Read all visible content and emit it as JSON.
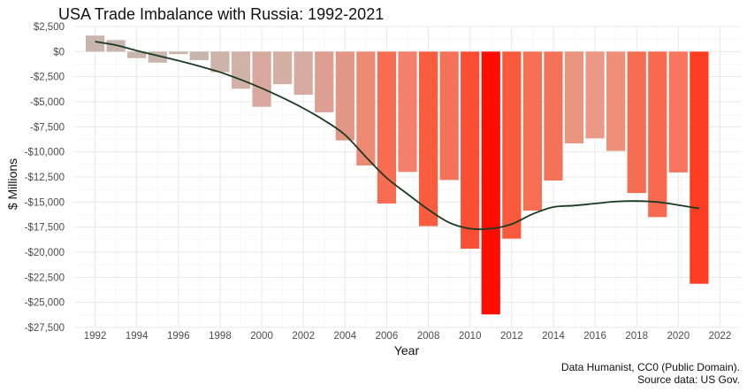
{
  "chart_data": {
    "type": "bar",
    "title": "USA Trade Imbalance with Russia: 1992-2021",
    "xlabel": "Year",
    "ylabel": "$ Millions",
    "xlim": [
      1991,
      2023
    ],
    "ylim": [
      -27500,
      2500
    ],
    "x_ticks": [
      1992,
      1994,
      1996,
      1998,
      2000,
      2002,
      2004,
      2006,
      2008,
      2010,
      2012,
      2014,
      2016,
      2018,
      2020,
      2022
    ],
    "x_tick_labels": [
      "1992",
      "1994",
      "1996",
      "1998",
      "2000",
      "2002",
      "2004",
      "2006",
      "2008",
      "2010",
      "2012",
      "2014",
      "2016",
      "2018",
      "2020",
      "2022"
    ],
    "y_ticks": [
      2500,
      0,
      -2500,
      -5000,
      -7500,
      -10000,
      -12500,
      -15000,
      -17500,
      -20000,
      -22500,
      -25000,
      -27500
    ],
    "y_tick_labels": [
      "$2,500",
      "$0",
      "-$2,500",
      "-$5,000",
      "-$7,500",
      "-$10,000",
      "-$12,500",
      "-$15,000",
      "-$17,500",
      "-$20,000",
      "-$22,500",
      "-$25,000",
      "-$27,500"
    ],
    "grid": true,
    "legend": "none",
    "categories": [
      1992,
      1993,
      1994,
      1995,
      1996,
      1997,
      1998,
      1999,
      2000,
      2001,
      2002,
      2003,
      2004,
      2005,
      2006,
      2007,
      2008,
      2009,
      2010,
      2011,
      2012,
      2013,
      2014,
      2015,
      2016,
      2017,
      2018,
      2019,
      2020,
      2021
    ],
    "values": [
      1600,
      1150,
      -650,
      -1100,
      -250,
      -850,
      -2050,
      -3700,
      -5500,
      -3250,
      -4300,
      -6050,
      -8850,
      -11350,
      -15150,
      -12000,
      -17400,
      -12800,
      -19650,
      -26200,
      -18650,
      -15850,
      -12850,
      -9150,
      -8650,
      -9900,
      -14100,
      -16500,
      -12050,
      -23150
    ],
    "colors": [
      "#c8b6ae",
      "#c8b6ae",
      "#c8b6ae",
      "#c8b6ae",
      "#c8b6ae",
      "#c8b6ae",
      "#cdb3a9",
      "#d2b1a7",
      "#d9a89c",
      "#d4afa3",
      "#d6aca1",
      "#dc9f91",
      "#e49684",
      "#ed8a74",
      "#f66d52",
      "#f2806a",
      "#fa5c3e",
      "#f47258",
      "#fb4f33",
      "#ff0d00",
      "#fa5a3c",
      "#f66e54",
      "#f47258",
      "#e99580",
      "#e99985",
      "#ee8f79",
      "#f66d52",
      "#f76a4f",
      "#f7765d",
      "#fc3d22"
    ],
    "trend": {
      "x": [
        1992,
        1993,
        1994,
        1995,
        1996,
        1997,
        1998,
        1999,
        2000,
        2001,
        2002,
        2003,
        2004,
        2005,
        2006,
        2007,
        2008,
        2009,
        2010,
        2011,
        2012,
        2013,
        2014,
        2015,
        2016,
        2017,
        2018,
        2019,
        2020,
        2021
      ],
      "y": [
        1000,
        650,
        100,
        -400,
        -900,
        -1450,
        -2050,
        -2800,
        -3650,
        -4600,
        -5650,
        -6850,
        -8300,
        -10500,
        -12600,
        -14200,
        -15750,
        -17050,
        -17650,
        -17650,
        -17200,
        -16200,
        -15500,
        -15350,
        -15150,
        -14950,
        -14900,
        -15000,
        -15300,
        -15650
      ],
      "color": "#1b3a24"
    },
    "annotations": [
      "Data Humanist, CC0 (Public Domain).",
      "Source data: US Gov."
    ]
  }
}
